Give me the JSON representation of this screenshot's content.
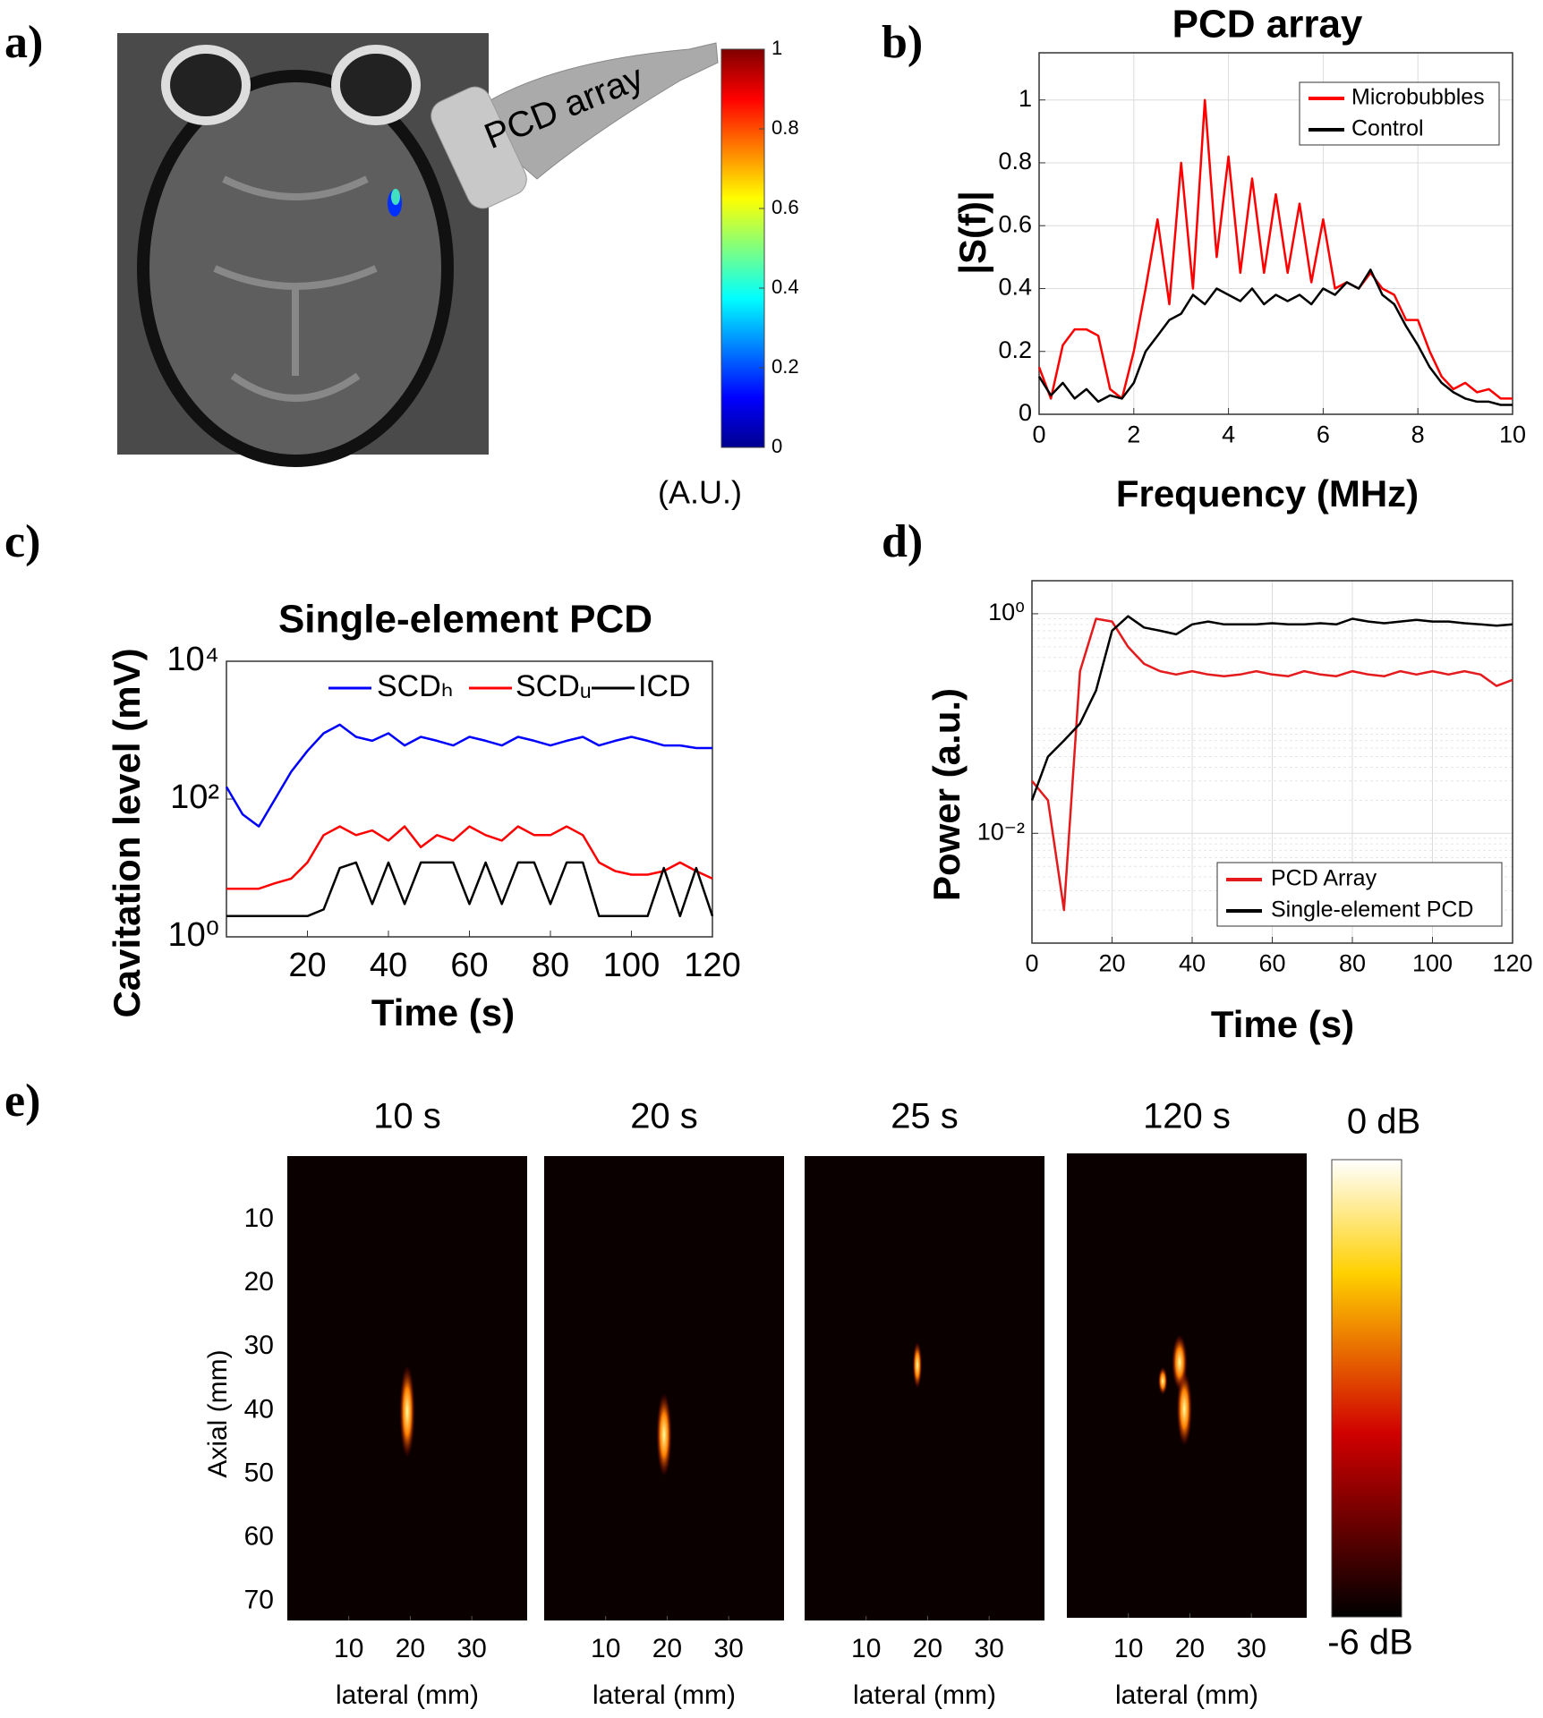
{
  "chart_data": [
    {
      "type": "image",
      "panel": "a)",
      "probe_label": "PCD array",
      "colorbar_label": "(A.U.)",
      "clim": [
        0,
        1
      ],
      "cticks": [
        0,
        0.2,
        0.4,
        0.6,
        0.8,
        1
      ]
    },
    {
      "type": "line",
      "panel": "b)",
      "title": "PCD array",
      "xlabel": "Frequency (MHz)",
      "ylabel": "|S(f)|",
      "grid": true,
      "legend": "upper right",
      "xlim": [
        0,
        10
      ],
      "xticks": [
        0,
        2,
        4,
        6,
        8,
        10
      ],
      "ylim": [
        0,
        1.15
      ],
      "yticks": [
        0,
        0.2,
        0.4,
        0.6,
        0.8,
        1
      ],
      "x": [
        0,
        0.25,
        0.5,
        0.75,
        1,
        1.25,
        1.5,
        1.75,
        2,
        2.25,
        2.5,
        2.75,
        3,
        3.25,
        3.5,
        3.75,
        4,
        4.25,
        4.5,
        4.75,
        5,
        5.25,
        5.5,
        5.75,
        6,
        6.25,
        6.5,
        6.75,
        7,
        7.25,
        7.5,
        7.75,
        8,
        8.25,
        8.5,
        8.75,
        9,
        9.25,
        9.5,
        9.75,
        10
      ],
      "series": [
        {
          "name": "Microbubbles",
          "color": "#ff0000",
          "values": [
            0.15,
            0.05,
            0.22,
            0.27,
            0.27,
            0.25,
            0.08,
            0.05,
            0.2,
            0.4,
            0.62,
            0.35,
            0.8,
            0.4,
            1.0,
            0.5,
            0.82,
            0.45,
            0.75,
            0.45,
            0.7,
            0.45,
            0.67,
            0.42,
            0.62,
            0.4,
            0.42,
            0.4,
            0.45,
            0.4,
            0.38,
            0.3,
            0.3,
            0.2,
            0.12,
            0.08,
            0.1,
            0.07,
            0.08,
            0.05,
            0.05
          ]
        },
        {
          "name": "Control",
          "color": "#000000",
          "values": [
            0.12,
            0.06,
            0.1,
            0.05,
            0.08,
            0.04,
            0.06,
            0.05,
            0.1,
            0.2,
            0.25,
            0.3,
            0.32,
            0.38,
            0.35,
            0.4,
            0.38,
            0.36,
            0.4,
            0.35,
            0.38,
            0.36,
            0.38,
            0.35,
            0.4,
            0.38,
            0.42,
            0.4,
            0.46,
            0.38,
            0.35,
            0.28,
            0.22,
            0.15,
            0.1,
            0.07,
            0.05,
            0.04,
            0.04,
            0.03,
            0.03
          ]
        }
      ]
    },
    {
      "type": "line",
      "panel": "c)",
      "title": "Single-element PCD",
      "xlabel": "Time (s)",
      "ylabel": "Cavitation level (mV)",
      "grid": false,
      "log_y": true,
      "legend": "top",
      "xlim": [
        0,
        120
      ],
      "xticks": [
        20,
        40,
        60,
        80,
        100,
        120
      ],
      "ylim": [
        1,
        10000
      ],
      "yticks": [
        {
          "value": 1,
          "label": "10⁰"
        },
        {
          "value": 100,
          "label": "10²"
        },
        {
          "value": 10000,
          "label": "10⁴"
        }
      ],
      "x": [
        0,
        4,
        8,
        12,
        16,
        20,
        24,
        28,
        32,
        36,
        40,
        44,
        48,
        52,
        56,
        60,
        64,
        68,
        72,
        76,
        80,
        84,
        88,
        92,
        96,
        100,
        104,
        108,
        112,
        116,
        120
      ],
      "series": [
        {
          "name": "SCDₕ",
          "color": "#0000ff",
          "values": [
            150,
            60,
            40,
            100,
            250,
            500,
            900,
            1200,
            800,
            700,
            900,
            600,
            800,
            700,
            600,
            800,
            700,
            600,
            800,
            700,
            600,
            700,
            800,
            600,
            700,
            800,
            700,
            600,
            600,
            550,
            550
          ]
        },
        {
          "name": "SCDᵤ",
          "color": "#ff0000",
          "values": [
            5,
            5,
            5,
            6,
            7,
            12,
            30,
            40,
            30,
            35,
            25,
            40,
            20,
            30,
            25,
            40,
            30,
            25,
            40,
            30,
            30,
            40,
            30,
            12,
            9,
            8,
            8,
            9,
            12,
            9,
            7
          ]
        },
        {
          "name": "ICD",
          "color": "#000000",
          "values": [
            2,
            2,
            2,
            2,
            2,
            2,
            2.5,
            10,
            12,
            3,
            12,
            3,
            12,
            12,
            12,
            3,
            12,
            3,
            12,
            12,
            3,
            12,
            12,
            2,
            2,
            2,
            2,
            10,
            2,
            10,
            2
          ]
        }
      ]
    },
    {
      "type": "line",
      "panel": "d)",
      "xlabel": "Time (s)",
      "ylabel": "Power (a.u.)",
      "grid": true,
      "log_y": true,
      "legend": "lower right",
      "xlim": [
        0,
        120
      ],
      "xticks": [
        0,
        20,
        40,
        60,
        80,
        100,
        120
      ],
      "ylim": [
        0.001,
        2
      ],
      "yticks": [
        {
          "value": 0.01,
          "label": "10⁻²"
        },
        {
          "value": 1,
          "label": "10⁰"
        }
      ],
      "x": [
        0,
        4,
        8,
        12,
        16,
        20,
        24,
        28,
        32,
        36,
        40,
        44,
        48,
        52,
        56,
        60,
        64,
        68,
        72,
        76,
        80,
        84,
        88,
        92,
        96,
        100,
        104,
        108,
        112,
        116,
        120
      ],
      "series": [
        {
          "name": "PCD Array",
          "color": "#e41a1c",
          "values": [
            0.03,
            0.02,
            0.002,
            0.3,
            0.9,
            0.85,
            0.5,
            0.35,
            0.3,
            0.28,
            0.3,
            0.28,
            0.27,
            0.28,
            0.3,
            0.28,
            0.27,
            0.3,
            0.28,
            0.27,
            0.3,
            0.28,
            0.27,
            0.3,
            0.28,
            0.3,
            0.28,
            0.3,
            0.28,
            0.22,
            0.25
          ]
        },
        {
          "name": "Single-element PCD",
          "color": "#000000",
          "values": [
            0.02,
            0.05,
            0.07,
            0.1,
            0.2,
            0.7,
            0.95,
            0.75,
            0.7,
            0.65,
            0.8,
            0.85,
            0.8,
            0.8,
            0.8,
            0.82,
            0.8,
            0.8,
            0.82,
            0.8,
            0.9,
            0.85,
            0.82,
            0.85,
            0.88,
            0.85,
            0.85,
            0.82,
            0.8,
            0.78,
            0.8
          ]
        }
      ]
    },
    {
      "type": "image-grid",
      "panel": "e)",
      "titles": [
        "10 s",
        "20 s",
        "25 s",
        "120 s"
      ],
      "xlabel": "lateral (mm)",
      "ylabel": "Axial (mm)",
      "xlim": [
        0,
        39
      ],
      "xticks": [
        10,
        20,
        30
      ],
      "ylim": [
        0,
        73
      ],
      "yticks": [
        10,
        20,
        30,
        40,
        50,
        60,
        70
      ],
      "colorbar_top": "0 dB",
      "colorbar_bottom": "-6 dB"
    }
  ]
}
